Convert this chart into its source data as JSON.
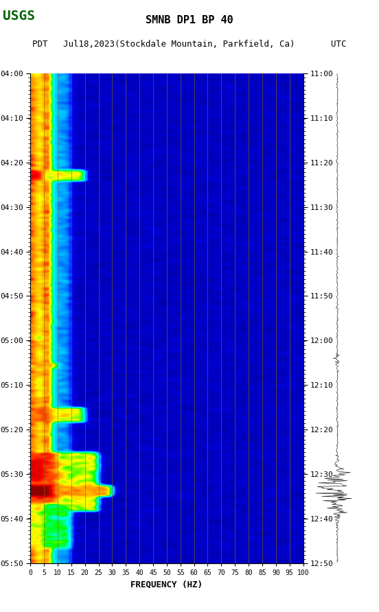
{
  "title_line1": "SMNB DP1 BP 40",
  "title_line2": "PDT   Jul18,2023(Stockdale Mountain, Parkfield, Ca)       UTC",
  "xlabel": "FREQUENCY (HZ)",
  "freq_ticks": [
    0,
    5,
    10,
    15,
    20,
    25,
    30,
    35,
    40,
    45,
    50,
    55,
    60,
    65,
    70,
    75,
    80,
    85,
    90,
    95,
    100
  ],
  "freq_vlines": [
    5,
    10,
    15,
    20,
    25,
    30,
    35,
    40,
    45,
    50,
    55,
    60,
    65,
    70,
    75,
    80,
    85,
    90,
    95
  ],
  "time_ticks_left": [
    "04:00",
    "04:10",
    "04:20",
    "04:30",
    "04:40",
    "04:50",
    "05:00",
    "05:10",
    "05:20",
    "05:30",
    "05:40",
    "05:50"
  ],
  "time_ticks_right": [
    "11:00",
    "11:10",
    "11:20",
    "11:30",
    "11:40",
    "11:50",
    "12:00",
    "12:10",
    "12:20",
    "12:30",
    "12:40",
    "12:50"
  ],
  "background_color": "#ffffff",
  "spectrogram_bg": "#0000cc",
  "fig_width": 5.52,
  "fig_height": 8.92,
  "dpi": 100
}
